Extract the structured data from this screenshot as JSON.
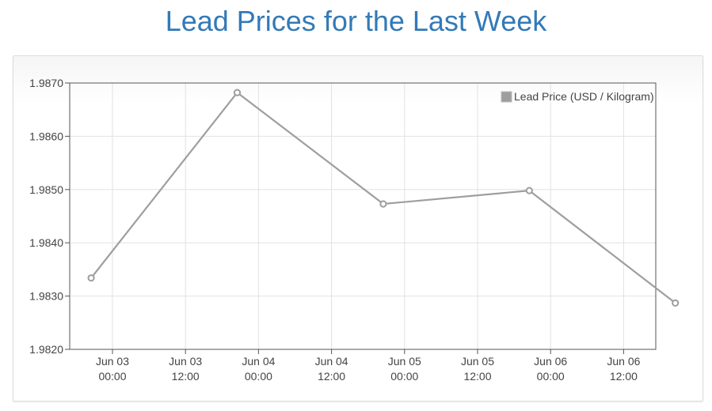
{
  "page": {
    "title": "Lead Prices for the Last Week"
  },
  "chart_data": {
    "type": "line",
    "title": "Lead Prices for the Last Week",
    "xlabel": "",
    "ylabel": "",
    "ylim": [
      1.982,
      1.987
    ],
    "yticks": [
      "1.9820",
      "1.9830",
      "1.9840",
      "1.9850",
      "1.9860",
      "1.9870"
    ],
    "xticks": [
      [
        "Jun 03",
        "00:00"
      ],
      [
        "Jun 03",
        "12:00"
      ],
      [
        "Jun 04",
        "00:00"
      ],
      [
        "Jun 04",
        "12:00"
      ],
      [
        "Jun 05",
        "00:00"
      ],
      [
        "Jun 05",
        "12:00"
      ],
      [
        "Jun 06",
        "00:00"
      ],
      [
        "Jun 06",
        "12:00"
      ]
    ],
    "series": [
      {
        "name": "Lead Price (USD / Kilogram)",
        "color": "#9e9e9e",
        "points": [
          {
            "x": "2024-06-02 20:30",
            "y": 1.98334
          },
          {
            "x": "2024-06-03 20:30",
            "y": 1.98682
          },
          {
            "x": "2024-06-04 20:30",
            "y": 1.98473
          },
          {
            "x": "2024-06-05 20:30",
            "y": 1.98498
          },
          {
            "x": "2024-06-06 20:30",
            "y": 1.98287
          }
        ]
      }
    ],
    "grid": true,
    "legend": "top-right"
  }
}
